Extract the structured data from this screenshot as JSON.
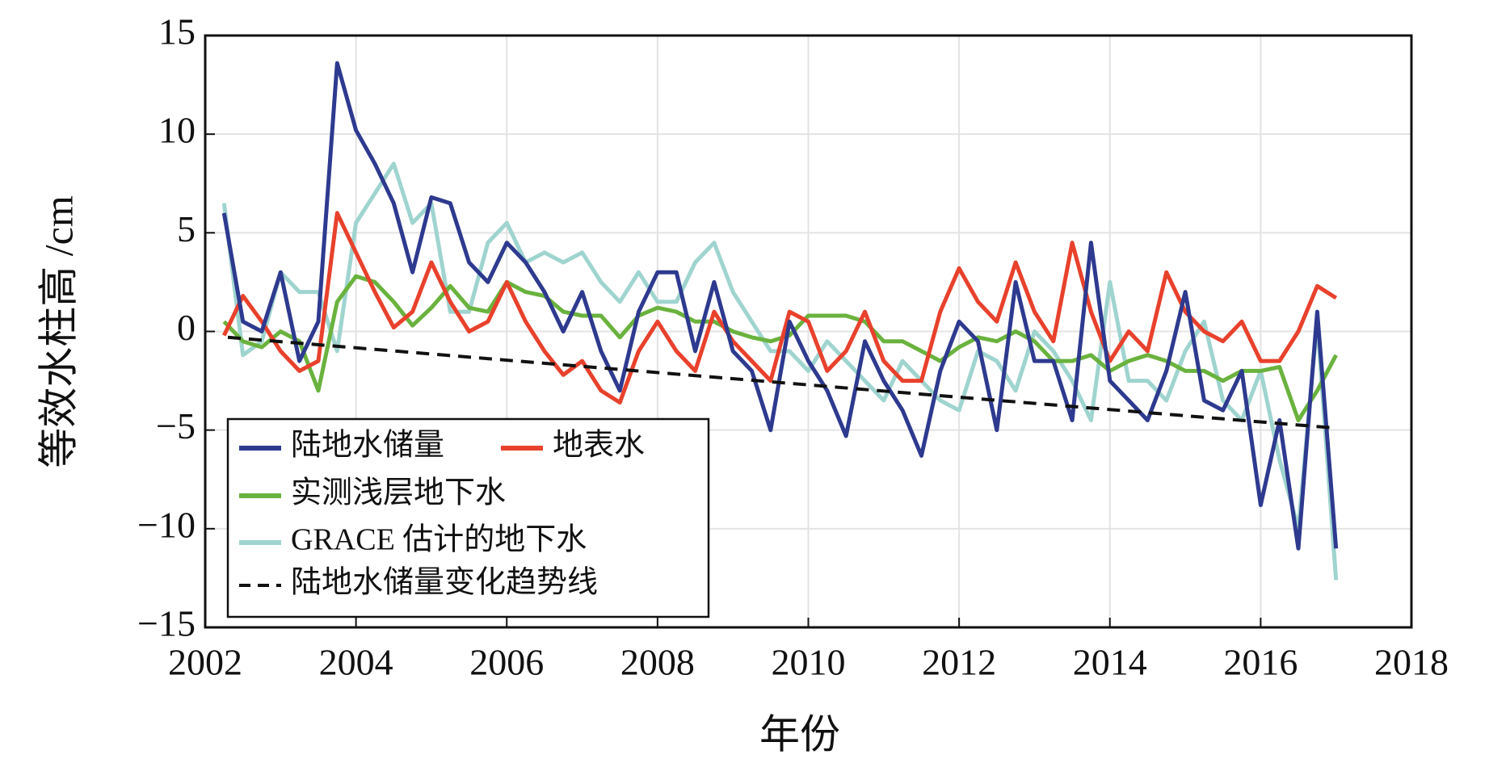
{
  "chart_data": {
    "type": "line",
    "xlabel": "年份",
    "ylabel": "等效水柱高 /cm",
    "xlim": [
      2002,
      2018
    ],
    "ylim": [
      -15,
      15
    ],
    "xticks": [
      2002,
      2004,
      2006,
      2008,
      2010,
      2012,
      2014,
      2016,
      2018
    ],
    "yticks": [
      {
        "value": -15,
        "label": "−15"
      },
      {
        "value": -10,
        "label": "−10"
      },
      {
        "value": -5,
        "label": "−5"
      },
      0,
      5,
      10,
      15
    ],
    "grid": true,
    "legend": "lower left",
    "x": [
      2002.25,
      2002.5,
      2002.75,
      2003.0,
      2003.25,
      2003.5,
      2003.75,
      2004.0,
      2004.25,
      2004.5,
      2004.75,
      2005.0,
      2005.25,
      2005.5,
      2005.75,
      2006.0,
      2006.25,
      2006.5,
      2006.75,
      2007.0,
      2007.25,
      2007.5,
      2007.75,
      2008.0,
      2008.25,
      2008.5,
      2008.75,
      2009.0,
      2009.25,
      2009.5,
      2009.75,
      2010.0,
      2010.25,
      2010.5,
      2010.75,
      2011.0,
      2011.25,
      2011.5,
      2011.75,
      2012.0,
      2012.25,
      2012.5,
      2012.75,
      2013.0,
      2013.25,
      2013.5,
      2013.75,
      2014.0,
      2014.25,
      2014.5,
      2014.75,
      2015.0,
      2015.25,
      2015.5,
      2015.75,
      2016.0,
      2016.25,
      2016.5,
      2016.75,
      2017.0
    ],
    "series": [
      {
        "name": "陆地水储量",
        "color": "#2e3a8f",
        "values": [
          6,
          0.5,
          0,
          3,
          -1.5,
          0.5,
          13.6,
          10.2,
          8.5,
          6.5,
          3,
          6.8,
          6.5,
          3.5,
          2.5,
          4.5,
          3.5,
          2,
          0,
          2,
          -1,
          -3,
          1,
          3,
          3,
          -1,
          2.5,
          -1,
          -2,
          -5,
          0.5,
          -1.5,
          -3,
          -5.3,
          -0.5,
          -2.5,
          -4,
          -6.3,
          -2,
          0.5,
          -0.5,
          -5,
          2.5,
          -1.5,
          -1.5,
          -4.5,
          4.5,
          -2.5,
          -3.5,
          -4.5,
          -2,
          2,
          -3.5,
          -4,
          -2,
          -8.8,
          -4.5,
          -11,
          1,
          -11
        ]
      },
      {
        "name": "地表水",
        "color": "#e8412c",
        "values": [
          -0.2,
          1.8,
          0.5,
          -1,
          -2,
          -1.5,
          6,
          4,
          2,
          0.2,
          1,
          3.5,
          1.5,
          0,
          0.5,
          2.5,
          0.5,
          -1,
          -2.2,
          -1.5,
          -3,
          -3.6,
          -1,
          0.5,
          -1,
          -2,
          1,
          -0.5,
          -1.5,
          -2.5,
          1,
          0.5,
          -2,
          -1,
          1,
          -1.5,
          -2.5,
          -2.5,
          1,
          3.2,
          1.5,
          0.5,
          3.5,
          1,
          -0.5,
          4.5,
          1,
          -1.5,
          0,
          -1,
          3,
          1,
          0,
          -0.5,
          0.5,
          -1.5,
          -1.5,
          0,
          2.3,
          1.7
        ]
      },
      {
        "name": "实测浅层地下水",
        "color": "#6ab23e",
        "values": [
          0.5,
          -0.5,
          -0.8,
          0,
          -0.5,
          -3,
          1.5,
          2.8,
          2.5,
          1.5,
          0.3,
          1.2,
          2.3,
          1.2,
          1,
          2.5,
          2,
          1.8,
          1,
          0.8,
          0.8,
          -0.3,
          0.8,
          1.2,
          1,
          0.5,
          0.5,
          0,
          -0.3,
          -0.5,
          -0.2,
          0.8,
          0.8,
          0.8,
          0.5,
          -0.5,
          -0.5,
          -1,
          -1.5,
          -0.8,
          -0.3,
          -0.5,
          0,
          -0.5,
          -1.5,
          -1.5,
          -1.2,
          -2,
          -1.5,
          -1.2,
          -1.5,
          -2,
          -2,
          -2.5,
          -2,
          -2,
          -1.8,
          -4.5,
          -3,
          -1.2
        ]
      },
      {
        "name": "GRACE 估计的地下水",
        "color": "#9fd4cf",
        "values": [
          6.5,
          -1.2,
          -0.5,
          3,
          2,
          2,
          -1,
          5.5,
          7,
          8.5,
          5.5,
          6.5,
          1,
          1,
          4.5,
          5.5,
          3.5,
          4,
          3.5,
          4,
          2.5,
          1.5,
          3,
          1.5,
          1.5,
          3.5,
          4.5,
          2,
          0.5,
          -1,
          -1,
          -2,
          -0.5,
          -1.5,
          -2.5,
          -3.5,
          -1.5,
          -2.5,
          -3.5,
          -4,
          -1,
          -1.5,
          -3,
          0,
          -1,
          -2.5,
          -4.5,
          2.5,
          -2.5,
          -2.5,
          -3.5,
          -1,
          0.5,
          -3.5,
          -4.5,
          -2,
          -6.5,
          -10,
          0.5,
          -12.6
        ]
      },
      {
        "name": "陆地水储量变化趋势线",
        "color": "#111111",
        "dashed": true,
        "x": [
          2002.3,
          2017.0
        ],
        "values": [
          -0.3,
          -4.9
        ]
      }
    ]
  }
}
